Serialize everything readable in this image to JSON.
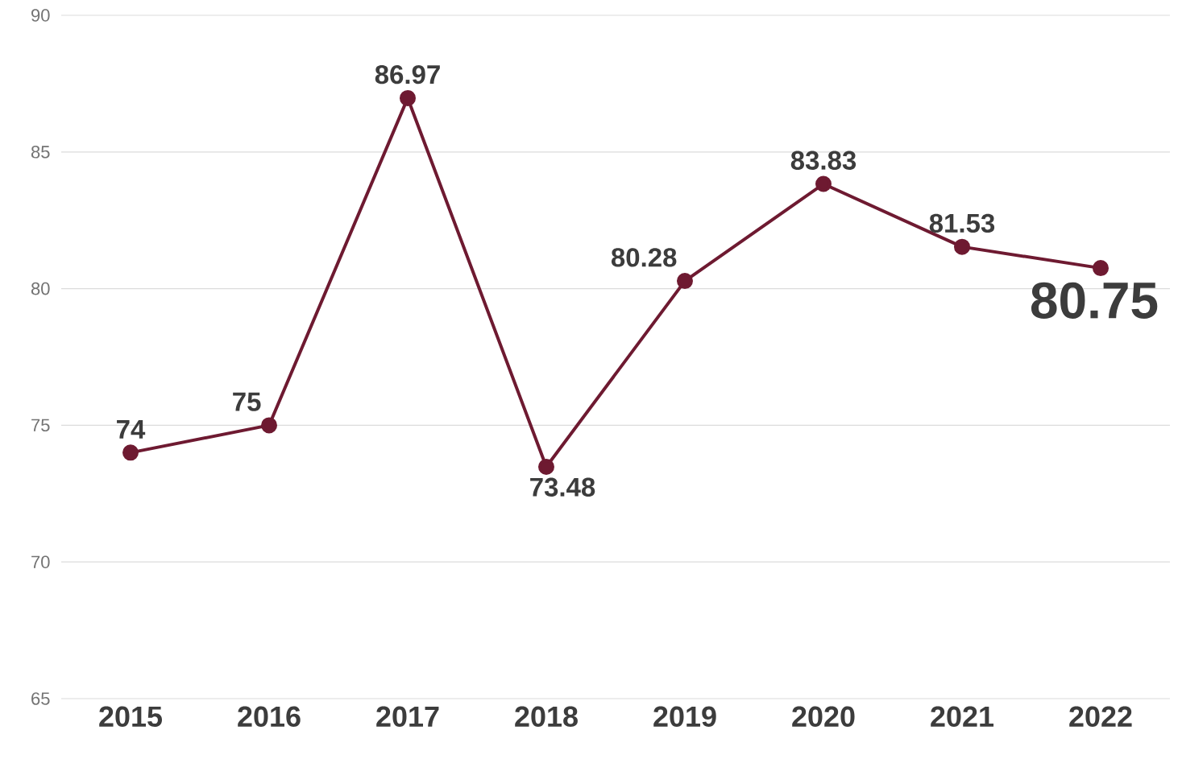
{
  "chart_data": {
    "type": "line",
    "categories": [
      "2015",
      "2016",
      "2017",
      "2018",
      "2019",
      "2020",
      "2021",
      "2022"
    ],
    "values": [
      74,
      75,
      86.97,
      73.48,
      80.28,
      83.83,
      81.53,
      80.75
    ],
    "value_labels": [
      "74",
      "75",
      "86.97",
      "73.48",
      "80.28",
      "83.83",
      "81.53",
      "80.75"
    ],
    "color": "#6e1a31",
    "marker": "circle",
    "line_style": "solid",
    "grid": "y",
    "ylim": [
      65,
      90
    ],
    "yticks": [
      65,
      70,
      75,
      80,
      85,
      90
    ]
  }
}
